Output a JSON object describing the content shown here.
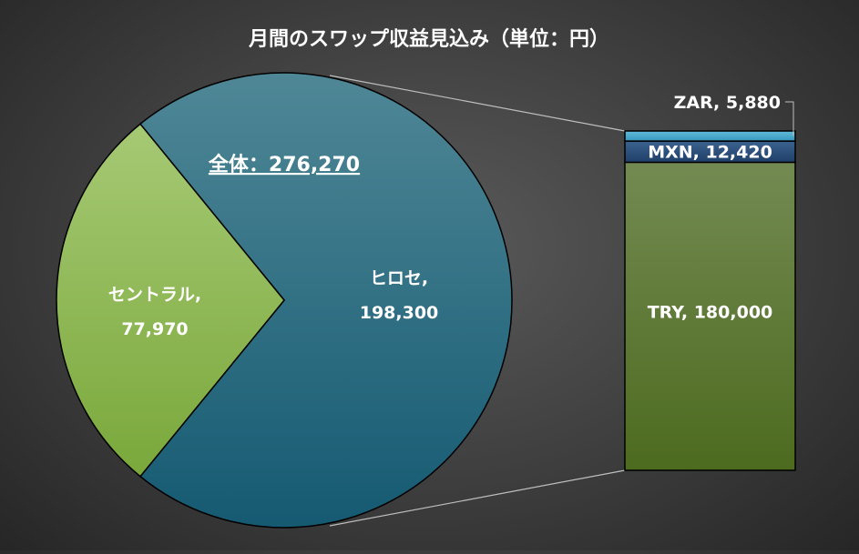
{
  "chart_data": {
    "type": "pie",
    "title": "月間のスワップ収益見込み（単位：円）",
    "total_label": "全体：276,270",
    "pie": {
      "slices": [
        {
          "name": "ヒロセ",
          "value": 198300,
          "label_name": "ヒロセ,",
          "label_value": "198,300",
          "color": "#1e6a80"
        },
        {
          "name": "セントラル",
          "value": 77970,
          "label_name": "セントラル,",
          "label_value": "77,970",
          "color": "#7faf3f"
        }
      ]
    },
    "bar": {
      "of_slice": "ヒロセ",
      "segments": [
        {
          "name": "TRY",
          "value": 180000,
          "label": "TRY, 180,000",
          "color": "#5f7f2e"
        },
        {
          "name": "MXN",
          "value": 12420,
          "label": "MXN, 12,420",
          "color": "#2a4d7a"
        },
        {
          "name": "ZAR",
          "value": 5880,
          "label": "ZAR, 5,880",
          "color": "#4aa7c8"
        }
      ]
    },
    "colors": {
      "background": "#3a3a3a",
      "text": "#ffffff",
      "connector": "#bfbfbf"
    }
  }
}
